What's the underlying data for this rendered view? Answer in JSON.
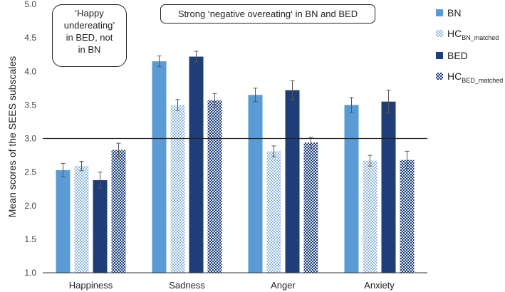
{
  "chart_data": {
    "type": "bar",
    "title": "",
    "xlabel": "",
    "ylabel": "Mean scores of the SEES subscales",
    "ylim": [
      1.0,
      5.0
    ],
    "yticks": [
      "1.0",
      "1.5",
      "2.0",
      "2.5",
      "3.0",
      "3.5",
      "4.0",
      "4.5",
      "5.0"
    ],
    "reference_line": 3.0,
    "categories": [
      "Happiness",
      "Sadness",
      "Anger",
      "Anxiety"
    ],
    "series": [
      {
        "name": "BN",
        "subscript": "",
        "color": "#5b9bd5",
        "pattern": "solid",
        "values": [
          2.53,
          4.15,
          3.65,
          3.5
        ],
        "errors": [
          0.1,
          0.08,
          0.1,
          0.11
        ]
      },
      {
        "name": "HC",
        "subscript": "BN_matched",
        "color": "#a9c8e8",
        "pattern": "checker-light",
        "values": [
          2.59,
          3.5,
          2.81,
          2.67
        ],
        "errors": [
          0.07,
          0.08,
          0.08,
          0.08
        ]
      },
      {
        "name": "BED",
        "subscript": "",
        "color": "#1f3e78",
        "pattern": "solid",
        "values": [
          2.38,
          4.22,
          3.72,
          3.55
        ],
        "errors": [
          0.12,
          0.08,
          0.14,
          0.17
        ]
      },
      {
        "name": "HC",
        "subscript": "BED_matched",
        "color": "#1f3e78",
        "pattern": "checker-dark",
        "values": [
          2.83,
          3.57,
          2.94,
          2.68
        ],
        "errors": [
          0.1,
          0.1,
          0.08,
          0.13
        ]
      }
    ],
    "annotations": [
      {
        "id": "happy",
        "text": "‘Happy\nundereating’\nin BED, not\nin BN"
      },
      {
        "id": "strong",
        "text": "Strong ‘negative overeating‘ in BN and BED"
      }
    ],
    "legend_position": "right"
  }
}
